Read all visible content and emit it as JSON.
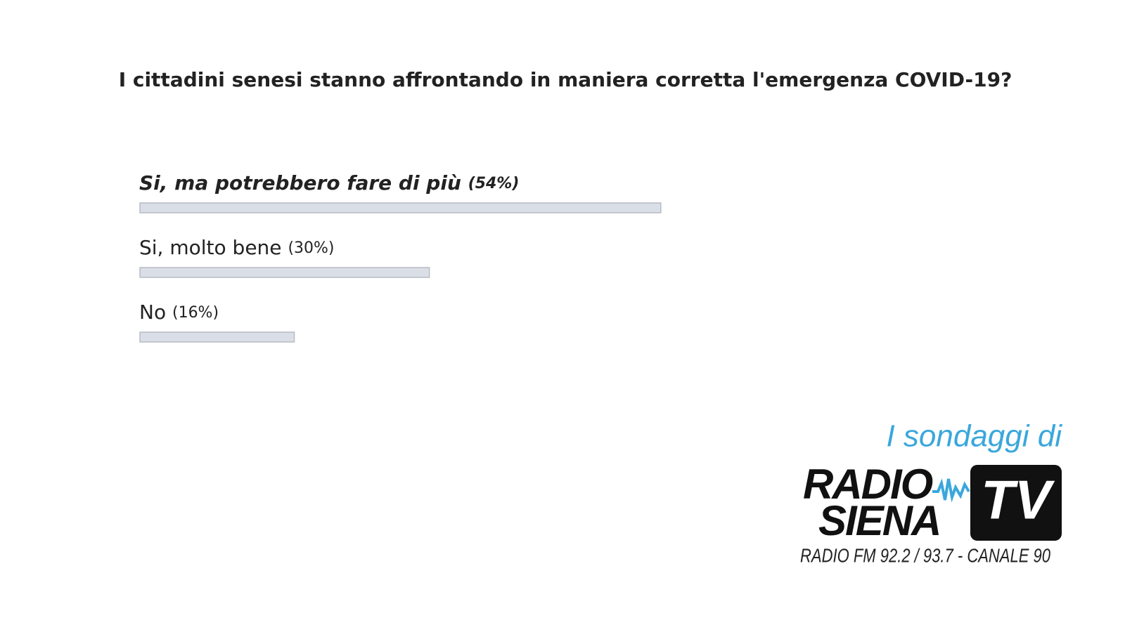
{
  "chart_data": {
    "type": "bar",
    "orientation": "horizontal",
    "title": "I cittadini senesi stanno affrontando in maniera corretta l'emergenza COVID-19?",
    "categories": [
      "Si, ma potrebbero fare di più",
      "Si, molto bene",
      "No"
    ],
    "values": [
      54,
      30,
      16
    ],
    "value_labels": [
      "(54%)",
      "(30%)",
      "(16%)"
    ],
    "color": "#d9dee7"
  },
  "branding": {
    "tagline": "I sondaggi di",
    "logo_line1": "RADIO",
    "logo_line2": "SIENA",
    "logo_badge": "TV",
    "frequencies": "RADIO FM 92.2 / 93.7 - CANALE 90"
  }
}
